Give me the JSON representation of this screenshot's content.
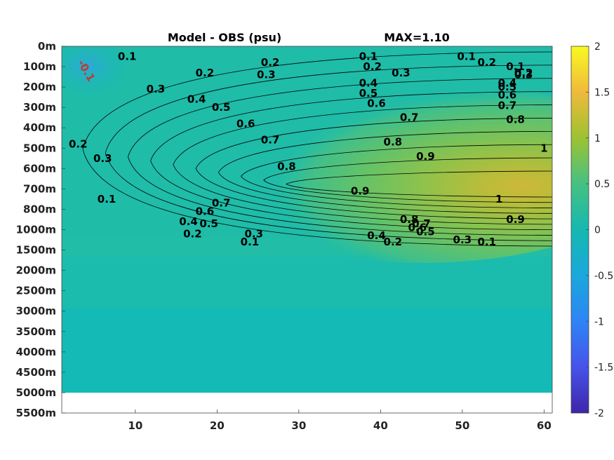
{
  "title_left": "Model - OBS (psu)",
  "title_right": "MAX=1.10",
  "chart_data": {
    "type": "heatmap",
    "title": "Model - OBS (psu)",
    "annotation": "MAX=1.10",
    "x_ticks": [
      10,
      20,
      30,
      40,
      50,
      60
    ],
    "x_range": [
      1,
      61
    ],
    "y_ticks": [
      "0m",
      "100m",
      "200m",
      "300m",
      "400m",
      "500m",
      "600m",
      "700m",
      "800m",
      "1000m",
      "1500m",
      "2000m",
      "2500m",
      "3000m",
      "3500m",
      "4000m",
      "4500m",
      "5000m",
      "5500m"
    ],
    "colorbar": {
      "min": -2,
      "max": 2,
      "ticks": [
        "2",
        "1.5",
        "1",
        "0.5",
        "0",
        "-0.5",
        "-1",
        "-1.5",
        "-2"
      ],
      "colormap": "parula"
    },
    "contour_levels": [
      0.1,
      0.2,
      0.3,
      0.4,
      0.5,
      0.6,
      0.7,
      0.8,
      0.9,
      1
    ],
    "contour_labels": [
      {
        "text": "0.1",
        "x": 9.0,
        "y": 0.5
      },
      {
        "text": "0.1",
        "x": 38.5,
        "y": 0.5
      },
      {
        "text": "0.1",
        "x": 50.5,
        "y": 0.5
      },
      {
        "text": "0.1",
        "x": 56.5,
        "y": 1
      },
      {
        "text": "0.1",
        "x": 6.5,
        "y": 7.5
      },
      {
        "text": "0.1",
        "x": 24.0,
        "y": 9.6
      },
      {
        "text": "0.1",
        "x": 53.0,
        "y": 9.6
      },
      {
        "text": "0.2",
        "x": 3.0,
        "y": 4.8
      },
      {
        "text": "0.2",
        "x": 18.5,
        "y": 1.3
      },
      {
        "text": "0.2",
        "x": 26.5,
        "y": 0.8
      },
      {
        "text": "0.2",
        "x": 39.0,
        "y": 1
      },
      {
        "text": "0.2",
        "x": 53.0,
        "y": 0.8
      },
      {
        "text": "0.2",
        "x": 57.5,
        "y": 1.3
      },
      {
        "text": "0.2",
        "x": 17.0,
        "y": 9.2
      },
      {
        "text": "0.2",
        "x": 41.5,
        "y": 9.6
      },
      {
        "text": "0.3",
        "x": 12.5,
        "y": 2.1
      },
      {
        "text": "0.3",
        "x": 26.0,
        "y": 1.4
      },
      {
        "text": "0.3",
        "x": 42.5,
        "y": 1.3
      },
      {
        "text": "0.3",
        "x": 57.5,
        "y": 1.4
      },
      {
        "text": "0.3",
        "x": 6.0,
        "y": 5.5
      },
      {
        "text": "0.3",
        "x": 24.5,
        "y": 9.2
      },
      {
        "text": "0.3",
        "x": 50.0,
        "y": 9.5
      },
      {
        "text": "0.4",
        "x": 17.5,
        "y": 2.6
      },
      {
        "text": "0.4",
        "x": 38.5,
        "y": 1.8
      },
      {
        "text": "0.4",
        "x": 55.5,
        "y": 1.8
      },
      {
        "text": "0.4",
        "x": 16.5,
        "y": 8.6
      },
      {
        "text": "0.4",
        "x": 39.5,
        "y": 9.3
      },
      {
        "text": "0.5",
        "x": 20.5,
        "y": 3
      },
      {
        "text": "0.5",
        "x": 38.5,
        "y": 2.3
      },
      {
        "text": "0.5",
        "x": 55.5,
        "y": 2
      },
      {
        "text": "0.5",
        "x": 19.0,
        "y": 8.7
      },
      {
        "text": "0.5",
        "x": 45.5,
        "y": 9.1
      },
      {
        "text": "0.6",
        "x": 23.5,
        "y": 3.8
      },
      {
        "text": "0.6",
        "x": 39.5,
        "y": 2.8
      },
      {
        "text": "0.6",
        "x": 55.5,
        "y": 2.4
      },
      {
        "text": "0.6",
        "x": 18.5,
        "y": 8.1
      },
      {
        "text": "0.6",
        "x": 44.5,
        "y": 8.9
      },
      {
        "text": "0.7",
        "x": 26.5,
        "y": 4.6
      },
      {
        "text": "0.7",
        "x": 43.5,
        "y": 3.5
      },
      {
        "text": "0.7",
        "x": 55.5,
        "y": 2.9
      },
      {
        "text": "0.7",
        "x": 20.5,
        "y": 7.7
      },
      {
        "text": "0.7",
        "x": 45.0,
        "y": 8.7
      },
      {
        "text": "0.8",
        "x": 28.5,
        "y": 5.9
      },
      {
        "text": "0.8",
        "x": 41.5,
        "y": 4.7
      },
      {
        "text": "0.8",
        "x": 56.5,
        "y": 3.6
      },
      {
        "text": "0.8",
        "x": 43.5,
        "y": 8.5
      },
      {
        "text": "0.9",
        "x": 45.5,
        "y": 5.4
      },
      {
        "text": "0.9",
        "x": 37.5,
        "y": 7.1
      },
      {
        "text": "0.9",
        "x": 56.5,
        "y": 8.5
      },
      {
        "text": "1",
        "x": 60.0,
        "y": 5
      },
      {
        "text": "1",
        "x": 54.5,
        "y": 7.5
      }
    ],
    "extremum_label": {
      "text": "-0.1",
      "x": 4.0,
      "y": 1.2
    }
  }
}
